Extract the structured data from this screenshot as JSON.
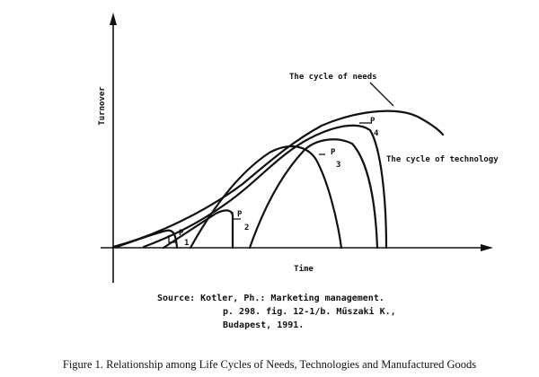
{
  "axes": {
    "y_label": "Turnover",
    "x_label": "Time"
  },
  "labels": {
    "cycle_of_needs": "The cycle of needs",
    "cycle_of_technology": "The cycle of technology",
    "p1": "P",
    "p1_num": "1",
    "p2": "P",
    "p2_num": "2",
    "p3": "P",
    "p3_num": "3",
    "p4": "P",
    "p4_num": "4"
  },
  "source": {
    "line1": "Source: Kotler, Ph.: Marketing management.",
    "line2": "p. 298. fig. 12-1/b. Műszaki K.,",
    "line3": "Budapest, 1991."
  },
  "caption": "Figure 1.  Relationship among Life Cycles of Needs, Technologies and Manufactured Goods"
}
